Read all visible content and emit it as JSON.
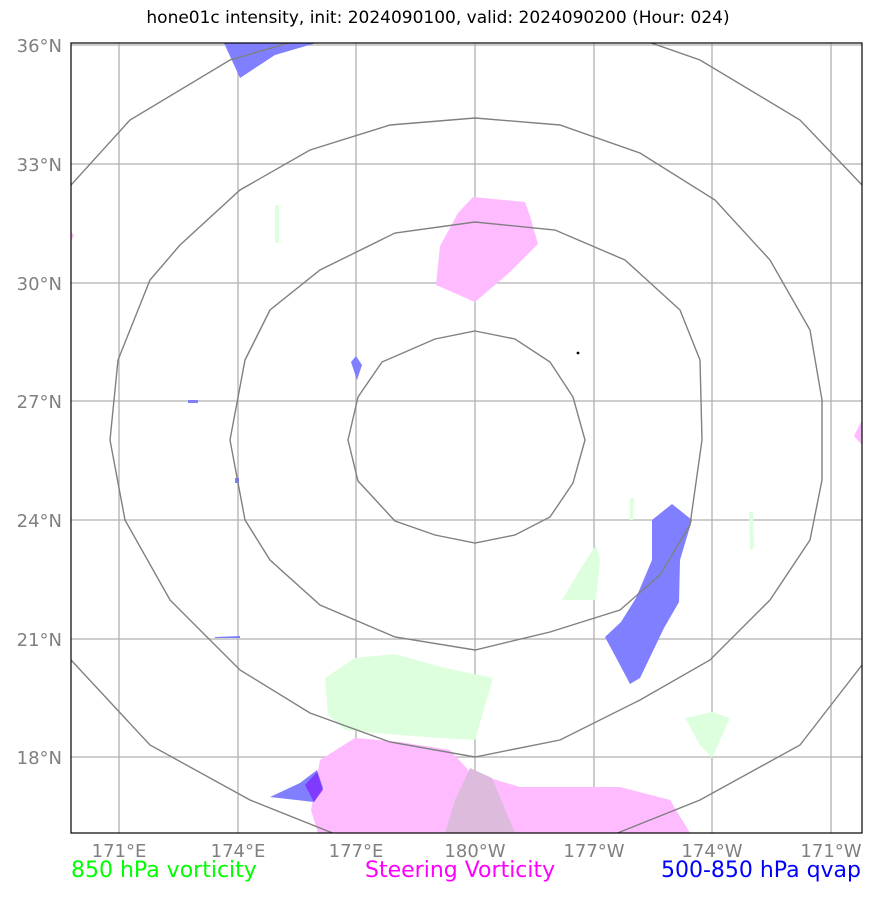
{
  "title": "hone01c intensity, init: 2024090100, valid: 2024090200 (Hour: 024)",
  "lat_labels": [
    "36°N",
    "33°N",
    "30°N",
    "27°N",
    "24°N",
    "21°N",
    "18°N"
  ],
  "lon_labels": [
    "171°E",
    "174°E",
    "177°E",
    "180°W",
    "177°W",
    "174°W",
    "171°W"
  ],
  "legend": {
    "green": "850 hPa vorticity",
    "pink": "Steering Vorticity",
    "blue": "500-850 hPa qvap"
  },
  "colors": {
    "green_fill": "#ddffdd",
    "pink_fill": "#ffbbff",
    "blue_fill": "#7f7fff",
    "grid": "#b0b0b0",
    "rings": "#808080"
  }
}
